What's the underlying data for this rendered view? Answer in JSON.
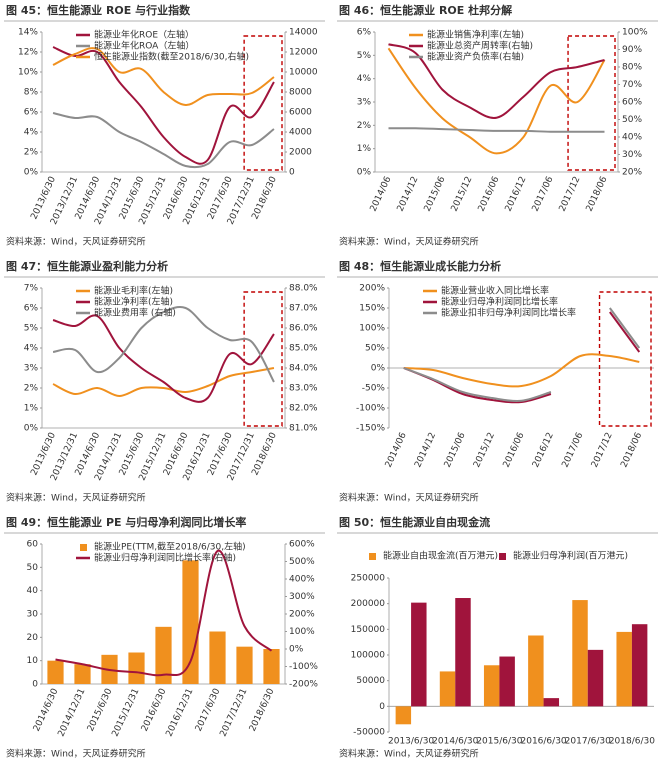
{
  "chart_data": [
    {
      "type": "line",
      "title": "图 45：恒生能源业 ROE 与行业指数",
      "source": "资料来源：Wind，天风证券研究所",
      "categories": [
        "2013/6/30",
        "2013/12/31",
        "2014/6/30",
        "2014/12/31",
        "2015/6/30",
        "2015/12/31",
        "2016/6/30",
        "2016/12/31",
        "2017/6/30",
        "2017/12/31",
        "2018/6/30"
      ],
      "series": [
        {
          "name": "能源业年化ROE（左轴）",
          "color": "#a0143c",
          "values": [
            12.5,
            11.6,
            12.0,
            9.0,
            6.5,
            3.5,
            1.5,
            1.2,
            6.5,
            5.5,
            9.0
          ]
        },
        {
          "name": "能源业年化ROA（左轴）",
          "color": "#8c8c8c",
          "values": [
            5.9,
            5.4,
            5.5,
            4.0,
            3.0,
            1.8,
            0.6,
            0.8,
            3.0,
            2.7,
            4.3
          ]
        },
        {
          "name": "恒生能源业指数(截至2018/6/30,右轴)",
          "color": "#f0901e",
          "axis": "y2",
          "values": [
            10700,
            11800,
            12300,
            10000,
            10300,
            8000,
            6700,
            7700,
            7800,
            7900,
            9500
          ]
        }
      ],
      "ylim": [
        0,
        14
      ],
      "yticks": [
        {
          "value": 0,
          "label": "0%"
        },
        {
          "value": 2,
          "label": "2%"
        },
        {
          "value": 4,
          "label": "4%"
        },
        {
          "value": 6,
          "label": "6%"
        },
        {
          "value": 8,
          "label": "8%"
        },
        {
          "value": 10,
          "label": "10%"
        },
        {
          "value": 12,
          "label": "12%"
        },
        {
          "value": 14,
          "label": "14%"
        }
      ],
      "y2lim": [
        0,
        14000
      ],
      "y2ticks": [
        0,
        2000,
        4000,
        6000,
        8000,
        10000,
        12000,
        14000
      ]
    },
    {
      "type": "line",
      "title": "图 46：恒生能源业 ROE 杜邦分解",
      "source": "资料来源：Wind，天风证券研究所",
      "categories": [
        "2014/06",
        "2014/12",
        "2015/06",
        "2015/12",
        "2016/06",
        "2016/12",
        "2017/06",
        "2017/12",
        "2018/06"
      ],
      "series": [
        {
          "name": "能源业销售净利率(左轴)",
          "color": "#f0901e",
          "values": [
            5.3,
            3.6,
            2.3,
            1.5,
            0.8,
            1.5,
            3.7,
            3.0,
            4.8
          ]
        },
        {
          "name": "能源业总资产周转率(右轴)",
          "color": "#a0143c",
          "axis": "y2",
          "values": [
            93,
            88,
            67,
            57,
            51,
            63,
            77,
            80,
            84
          ]
        },
        {
          "name": "能源业资产负债率(右轴)",
          "color": "#8c8c8c",
          "axis": "y2",
          "values": [
            45,
            45,
            44.5,
            44,
            43.5,
            43.5,
            43,
            43,
            43
          ]
        }
      ],
      "ylim": [
        0,
        6
      ],
      "yticks": [
        {
          "value": 0,
          "label": "0%"
        },
        {
          "value": 1,
          "label": "1%"
        },
        {
          "value": 2,
          "label": "2%"
        },
        {
          "value": 3,
          "label": "3%"
        },
        {
          "value": 4,
          "label": "4%"
        },
        {
          "value": 5,
          "label": "5%"
        },
        {
          "value": 6,
          "label": "6%"
        }
      ],
      "y2lim": [
        20,
        100
      ],
      "y2ticks": [
        {
          "value": 20,
          "label": "20%"
        },
        {
          "value": 30,
          "label": "30%"
        },
        {
          "value": 40,
          "label": "40%"
        },
        {
          "value": 50,
          "label": "50%"
        },
        {
          "value": 60,
          "label": "60%"
        },
        {
          "value": 70,
          "label": "70%"
        },
        {
          "value": 80,
          "label": "80%"
        },
        {
          "value": 90,
          "label": "90%"
        },
        {
          "value": 100,
          "label": "100%"
        }
      ]
    },
    {
      "type": "line",
      "title": "图 47：恒生能源业盈利能力分析",
      "source": "资料来源：Wind，天风证券研究所",
      "categories": [
        "2013/6/30",
        "2013/12/31",
        "2014/6/30",
        "2014/12/31",
        "2015/6/30",
        "2015/12/31",
        "2016/6/30",
        "2016/12/31",
        "2017/6/30",
        "2017/12/31",
        "2018/6/30"
      ],
      "series": [
        {
          "name": "能源业毛利率(左轴)",
          "color": "#f0901e",
          "values": [
            2.2,
            1.7,
            2.0,
            1.6,
            2.0,
            2.0,
            1.8,
            2.1,
            2.6,
            2.8,
            3.0
          ]
        },
        {
          "name": "能源业净利率(左轴)",
          "color": "#a0143c",
          "values": [
            5.4,
            5.1,
            5.6,
            4.0,
            3.0,
            2.3,
            1.5,
            1.5,
            3.7,
            3.2,
            4.7
          ]
        },
        {
          "name": "能源业费用率 (右轴)",
          "color": "#8c8c8c",
          "axis": "y2",
          "values": [
            84.8,
            84.9,
            83.8,
            84.5,
            86.0,
            86.8,
            87.0,
            86.0,
            85.4,
            85.3,
            83.3
          ]
        }
      ],
      "ylim": [
        0,
        7
      ],
      "yticks": [
        {
          "value": 0,
          "label": "0%"
        },
        {
          "value": 1,
          "label": "1%"
        },
        {
          "value": 2,
          "label": "2%"
        },
        {
          "value": 3,
          "label": "3%"
        },
        {
          "value": 4,
          "label": "4%"
        },
        {
          "value": 5,
          "label": "5%"
        },
        {
          "value": 6,
          "label": "6%"
        },
        {
          "value": 7,
          "label": "7%"
        }
      ],
      "y2lim": [
        81,
        88
      ],
      "y2ticks": [
        {
          "value": 81,
          "label": "81.0%"
        },
        {
          "value": 82,
          "label": "82.0%"
        },
        {
          "value": 83,
          "label": "83.0%"
        },
        {
          "value": 84,
          "label": "84.0%"
        },
        {
          "value": 85,
          "label": "85.0%"
        },
        {
          "value": 86,
          "label": "86.0%"
        },
        {
          "value": 87,
          "label": "87.0%"
        },
        {
          "value": 88,
          "label": "88.0%"
        }
      ]
    },
    {
      "type": "line",
      "title": "图 48：恒生能源业成长能力分析",
      "source": "资料来源：Wind，天风证券研究所",
      "categories": [
        "2014/06",
        "2014/12",
        "2015/06",
        "2015/12",
        "2016/06",
        "2016/12",
        "2017/06",
        "2017/12",
        "2018/06"
      ],
      "series": [
        {
          "name": "能源业营业收入同比增长率",
          "color": "#f0901e",
          "values": [
            0,
            -5,
            -25,
            -40,
            -45,
            -20,
            30,
            30,
            15
          ]
        },
        {
          "name": "能源业归母净利润同比增长率",
          "color": "#a0143c",
          "values": [
            0,
            -30,
            -65,
            -80,
            -85,
            -65,
            null,
            140,
            40
          ]
        },
        {
          "name": "能源业扣非归母净利润同比增长率",
          "color": "#8c8c8c",
          "values": [
            0,
            -28,
            -60,
            -75,
            -82,
            -60,
            null,
            150,
            50
          ]
        }
      ],
      "ylim": [
        -150,
        200
      ],
      "yticks": [
        {
          "value": -150,
          "label": "-150%"
        },
        {
          "value": -100,
          "label": "-100%"
        },
        {
          "value": -50,
          "label": "-50%"
        },
        {
          "value": 0,
          "label": "0%"
        },
        {
          "value": 50,
          "label": "50%"
        },
        {
          "value": 100,
          "label": "100%"
        },
        {
          "value": 150,
          "label": "150%"
        },
        {
          "value": 200,
          "label": "200%"
        }
      ]
    },
    {
      "type": "combo",
      "title": "图 49：恒生能源业 PE 与归母净利润同比增长率",
      "source": "资料来源：Wind，天风证券研究所",
      "categories": [
        "2014/6/30",
        "2014/12/31",
        "2015/6/30",
        "2015/12/31",
        "2016/6/30",
        "2016/12/31",
        "2017/6/30",
        "2017/12/31",
        "2018/6/30"
      ],
      "series": [
        {
          "name": "能源业PE(TTM,截至2018/6/30,左轴)",
          "color": "#f0901e",
          "kind": "bar",
          "values": [
            10,
            8.5,
            12.5,
            13.5,
            24.5,
            53,
            22.5,
            16,
            15
          ]
        },
        {
          "name": "能源业归母净利润同比增长率(右轴)",
          "color": "#a0143c",
          "kind": "line",
          "axis": "y2",
          "values": [
            -60,
            -87,
            -120,
            -133,
            -147,
            -70,
            560,
            130,
            -10
          ]
        }
      ],
      "ylim": [
        0,
        60
      ],
      "yticks": [
        0,
        10,
        20,
        30,
        40,
        50,
        60
      ],
      "y2lim": [
        -200,
        600
      ],
      "y2ticks": [
        {
          "value": -200,
          "label": "-200%"
        },
        {
          "value": -100,
          "label": "-100%"
        },
        {
          "value": 0,
          "label": "0%"
        },
        {
          "value": 100,
          "label": "100%"
        },
        {
          "value": 200,
          "label": "200%"
        },
        {
          "value": 300,
          "label": "300%"
        },
        {
          "value": 400,
          "label": "400%"
        },
        {
          "value": 500,
          "label": "500%"
        },
        {
          "value": 600,
          "label": "600%"
        }
      ]
    },
    {
      "type": "bar",
      "title": "图 50：恒生能源业自由现金流",
      "source": "资料来源：Wind，天风证券研究所",
      "categories": [
        "2013/6/30",
        "2014/6/30",
        "2015/6/30",
        "2016/6/30",
        "2017/6/30",
        "2018/6/30"
      ],
      "series": [
        {
          "name": "能源业自由现金流(百万港元)",
          "color": "#f0901e",
          "values": [
            -35000,
            68000,
            80000,
            138000,
            207000,
            145000
          ]
        },
        {
          "name": "能源业归母净利润(百万港元)",
          "color": "#a0143c",
          "values": [
            202000,
            211000,
            97000,
            16000,
            110000,
            160000
          ]
        }
      ],
      "ylim": [
        -50000,
        250000
      ],
      "yticks": [
        -50000,
        0,
        50000,
        100000,
        150000,
        200000,
        250000
      ]
    }
  ]
}
